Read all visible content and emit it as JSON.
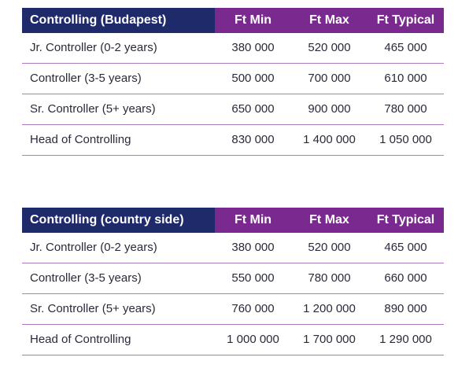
{
  "tables": [
    {
      "header": [
        "Controlling (Budapest)",
        "Ft Min",
        "Ft Max",
        "Ft Typical"
      ],
      "rows": [
        [
          "Jr. Controller (0-2 years)",
          "380 000",
          "520 000",
          "465 000"
        ],
        [
          "Controller (3-5 years)",
          "500 000",
          "700 000",
          "610 000"
        ],
        [
          "Sr. Controller (5+ years)",
          "650 000",
          "900 000",
          "780 000"
        ],
        [
          "Head of Controlling",
          "830 000",
          "1 400 000",
          "1 050 000"
        ]
      ]
    },
    {
      "header": [
        "Controlling (country side)",
        "Ft Min",
        "Ft Max",
        "Ft Typical"
      ],
      "rows": [
        [
          "Jr. Controller (0-2 years)",
          "380 000",
          "520 000",
          "465 000"
        ],
        [
          "Controller (3-5 years)",
          "550 000",
          "780 000",
          "660 000"
        ],
        [
          "Sr. Controller (5+ years)",
          "760 000",
          "1 200 000",
          "890 000"
        ],
        [
          "Head of Controlling",
          "1 000 000",
          "1 700 000",
          "1 290 000"
        ]
      ]
    }
  ],
  "colors": {
    "header_dark": "#1f2a6b",
    "header_purple": "#7a2a8e",
    "row_divider": "#b07cc0"
  }
}
